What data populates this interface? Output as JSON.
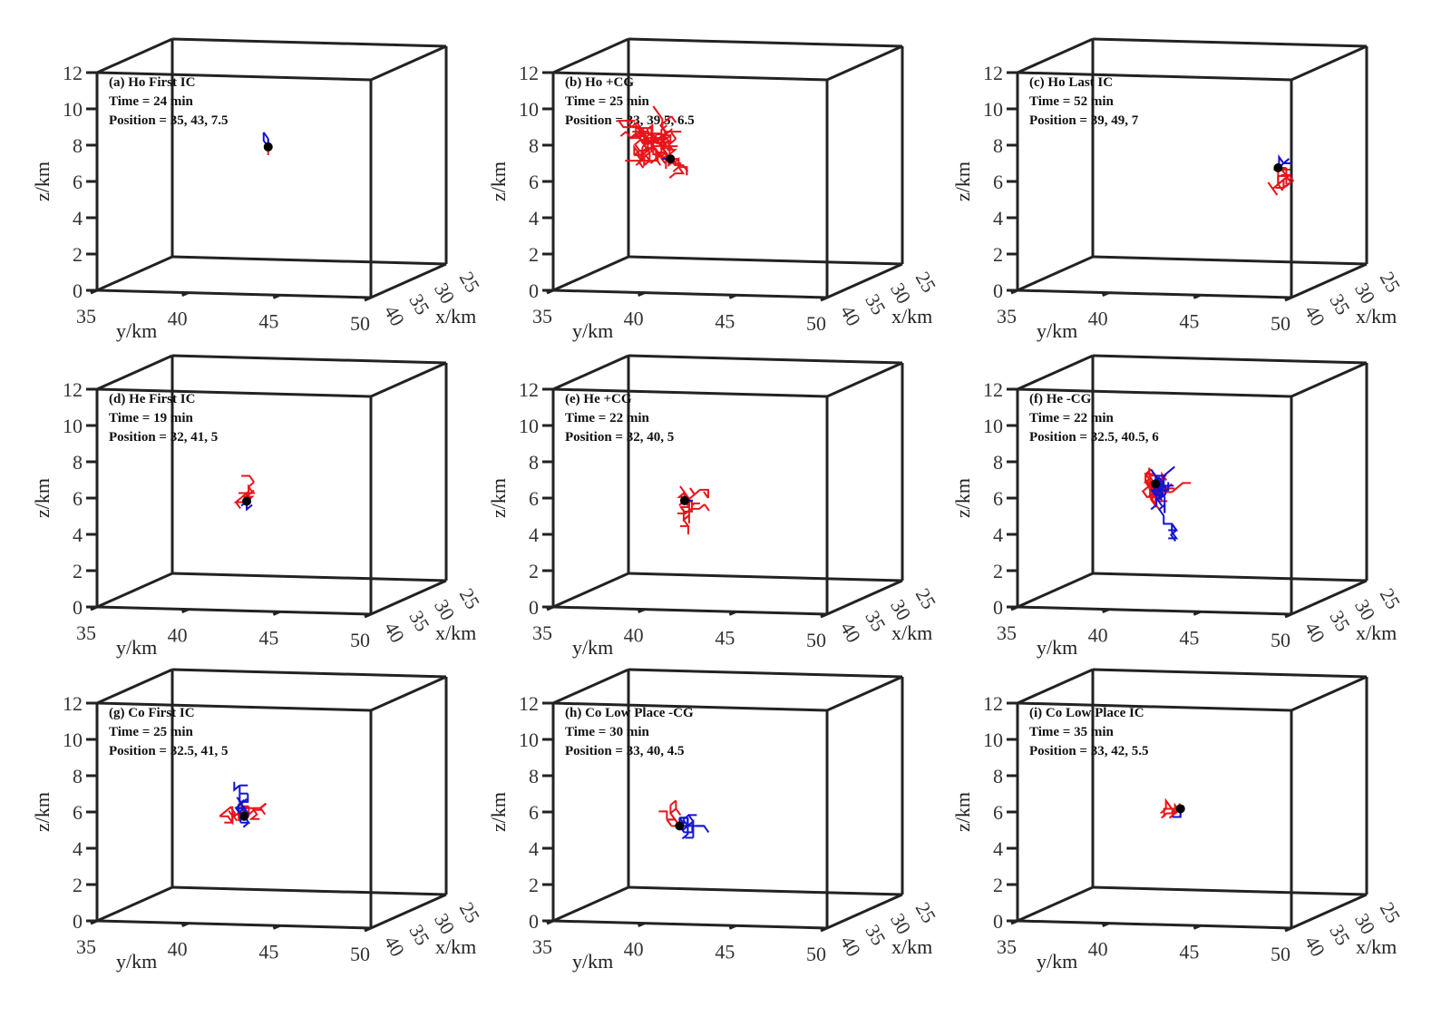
{
  "chart_data": {
    "type": "scatter",
    "projection": "3d",
    "axes": {
      "xlabel": "x/km",
      "ylabel": "y/km",
      "zlabel": "z/km",
      "xlim": [
        25,
        40
      ],
      "ylim": [
        35,
        50
      ],
      "zlim": [
        0,
        12
      ],
      "xticks": [
        "25",
        "30",
        "35",
        "40"
      ],
      "yticks": [
        "35",
        "40",
        "45",
        "50"
      ],
      "zticks": [
        "0",
        "2",
        "4",
        "6",
        "8",
        "10",
        "12"
      ],
      "grid": false
    },
    "colors": {
      "positive_channel": "#e8141a",
      "negative_channel": "#1414d2",
      "initiation_point": "#000000",
      "box": "#222222"
    },
    "panels": [
      {
        "title": "(a) Ho First IC",
        "time": "Time = 24 min",
        "position": "Position = 35, 43, 7.5",
        "point": [
          35,
          43,
          7.5
        ]
      },
      {
        "title": "(b) Ho +CG",
        "time": "Time = 25 min",
        "position": "Position = 33, 39.5, 6.5",
        "point": [
          33,
          39.5,
          6.5
        ]
      },
      {
        "title": "(c) Ho Last IC",
        "time": "Time = 52 min",
        "position": "Position = 39, 49, 7",
        "point": [
          39,
          49,
          7
        ]
      },
      {
        "title": "(d) He First IC",
        "time": "Time = 19 min",
        "position": "Position = 32, 41, 5",
        "point": [
          32,
          41,
          5
        ]
      },
      {
        "title": "(e) He +CG",
        "time": "Time = 22 min",
        "position": "Position = 32, 40, 5",
        "point": [
          32,
          40,
          5
        ]
      },
      {
        "title": "(f) He -CG",
        "time": "Time = 22 min",
        "position": "Position = 32.5, 40.5, 6",
        "point": [
          32.5,
          40.5,
          6
        ]
      },
      {
        "title": "(g) Co First IC",
        "time": "Time = 25 min",
        "position": "Position = 32.5, 41, 5",
        "point": [
          32.5,
          41,
          5
        ]
      },
      {
        "title": "(h) Co Low Place -CG",
        "time": "Time = 30 min",
        "position": "Position = 33, 40, 4.5",
        "point": [
          33,
          40,
          4.5
        ]
      },
      {
        "title": "(i) Co Low Place IC",
        "time": "Time = 35 min",
        "position": "Position = 33, 42, 5.5",
        "point": [
          33,
          42,
          5.5
        ]
      }
    ]
  }
}
